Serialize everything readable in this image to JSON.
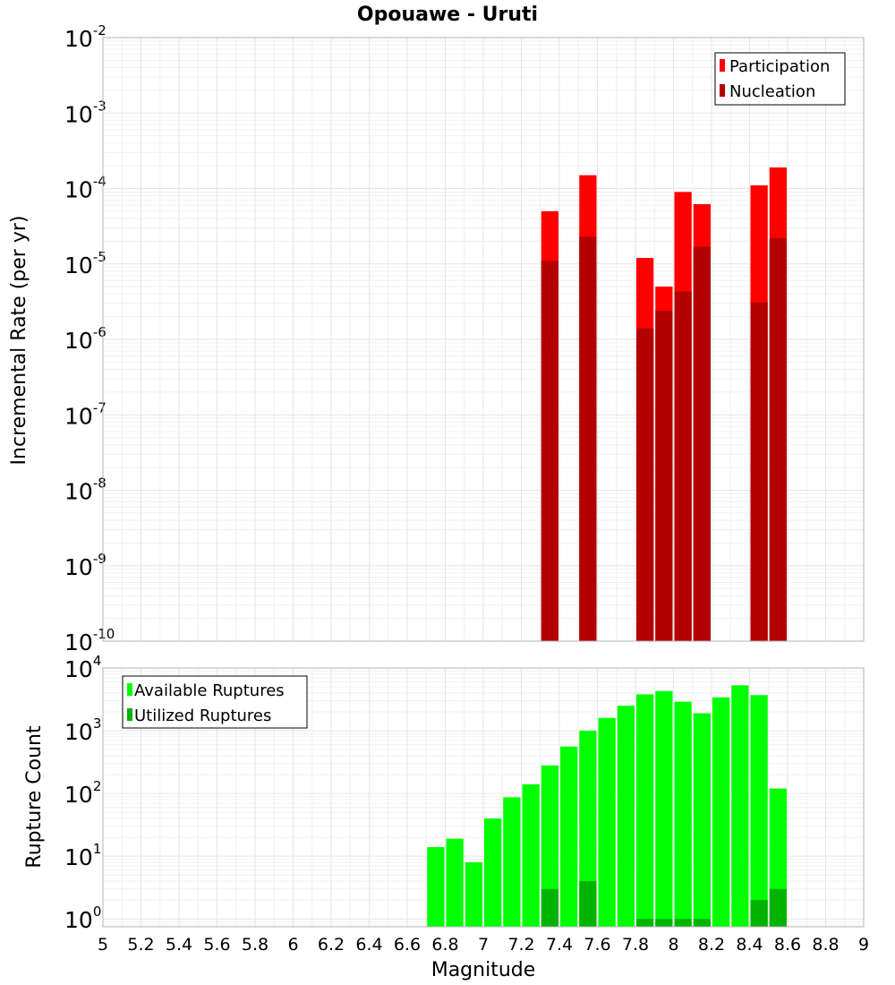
{
  "chart_data": [
    {
      "type": "bar",
      "title": "Opouawe - Uruti",
      "ylabel": "Incremental Rate (per yr)",
      "yscale": "log",
      "ylim": [
        1e-10,
        0.01
      ],
      "xlim": [
        5,
        9
      ],
      "legend_position": "top-right",
      "grid": true,
      "bar_width": 0.1,
      "series": [
        {
          "name": "Participation",
          "color": "#ff0000",
          "x": [
            7.35,
            7.55,
            7.85,
            7.95,
            8.05,
            8.15,
            8.45,
            8.55
          ],
          "values": [
            5e-05,
            0.00015,
            1.2e-05,
            5e-06,
            9e-05,
            6.2e-05,
            0.00011,
            0.00019
          ]
        },
        {
          "name": "Nucleation",
          "color": "#b30000",
          "x": [
            7.35,
            7.55,
            7.85,
            7.95,
            8.05,
            8.15,
            8.45,
            8.55
          ],
          "values": [
            1.1e-05,
            2.3e-05,
            1.4e-06,
            2.4e-06,
            4.3e-06,
            1.7e-05,
            3.1e-06,
            2.2e-05
          ]
        }
      ]
    },
    {
      "type": "bar",
      "xlabel": "Magnitude",
      "ylabel": "Rupture Count",
      "yscale": "log",
      "ylim": [
        0.75,
        10000
      ],
      "xlim": [
        5,
        9
      ],
      "x_ticks": [
        "5",
        "5.2",
        "5.4",
        "5.6",
        "5.8",
        "6",
        "6.2",
        "6.4",
        "6.6",
        "6.8",
        "7",
        "7.2",
        "7.4",
        "7.6",
        "7.8",
        "8",
        "8.2",
        "8.4",
        "8.6",
        "8.8",
        "9"
      ],
      "legend_position": "top-left",
      "grid": true,
      "bar_width": 0.1,
      "series": [
        {
          "name": "Available Ruptures",
          "color": "#00ff00",
          "x": [
            6.75,
            6.85,
            6.95,
            7.05,
            7.15,
            7.25,
            7.35,
            7.45,
            7.55,
            7.65,
            7.75,
            7.85,
            7.95,
            8.05,
            8.15,
            8.25,
            8.35,
            8.45,
            8.55
          ],
          "values": [
            14,
            19,
            8,
            40,
            87,
            140,
            280,
            560,
            1000,
            1600,
            2500,
            3800,
            4300,
            2900,
            1900,
            3400,
            5300,
            3700,
            120
          ]
        },
        {
          "name": "Utilized Ruptures",
          "color": "#00b300",
          "x": [
            7.35,
            7.55,
            7.85,
            7.95,
            8.05,
            8.15,
            8.45,
            8.55
          ],
          "values": [
            3,
            4,
            1,
            1,
            1,
            1,
            2,
            3
          ]
        }
      ]
    }
  ]
}
